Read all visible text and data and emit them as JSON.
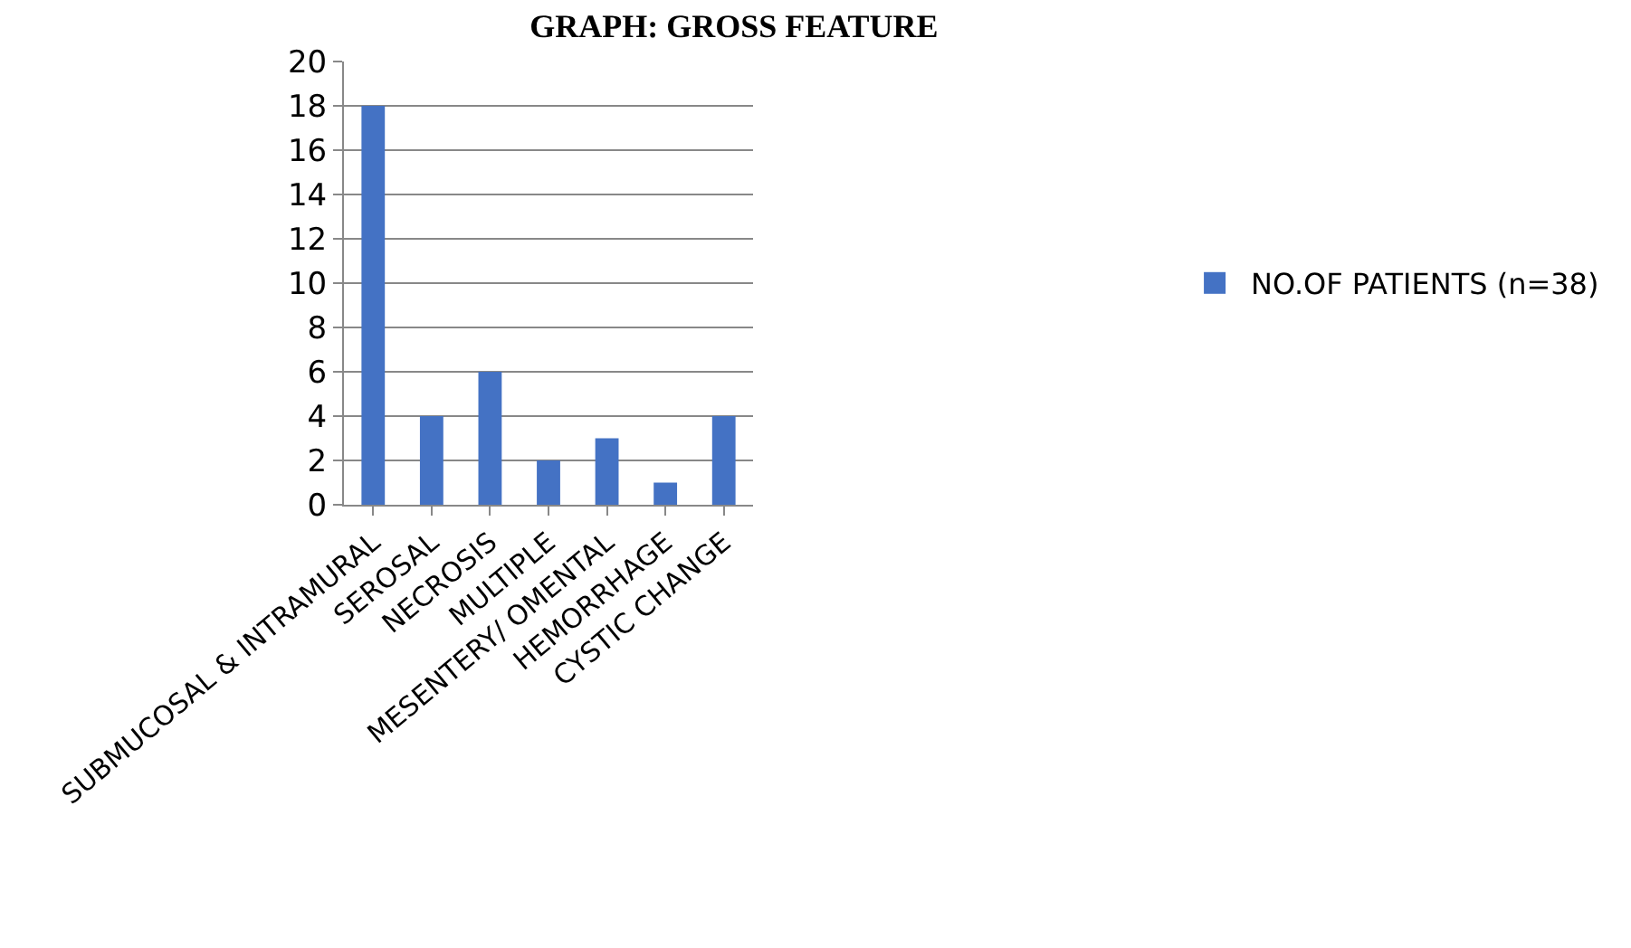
{
  "chart_data": {
    "type": "bar",
    "title": "GRAPH: GROSS FEATURE",
    "categories": [
      "SUBMUCOSAL & INTRAMURAL",
      "SEROSAL",
      "NECROSIS",
      "MULTIPLE",
      "MESENTERY/ OMENTAL",
      "HEMORRHAGE",
      "CYSTIC CHANGE"
    ],
    "series": [
      {
        "name": "NO.OF PATIENTS (n=38)",
        "color": "#4472c4",
        "values": [
          18,
          4,
          6,
          2,
          3,
          1,
          4
        ]
      }
    ],
    "ylim": [
      0,
      20
    ],
    "yticks": [
      0,
      2,
      4,
      6,
      8,
      10,
      12,
      14,
      16,
      18,
      20
    ],
    "grid": "y",
    "legend": "right"
  }
}
